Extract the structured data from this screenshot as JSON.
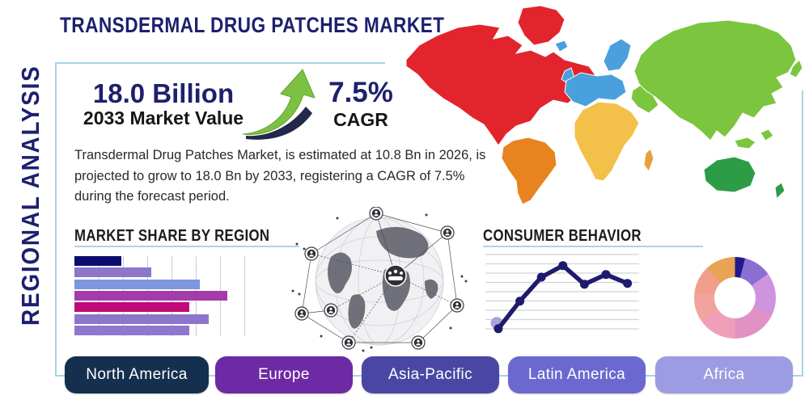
{
  "title": "TRANSDERMAL DRUG PATCHES MARKET",
  "side_label": "REGIONAL ANALYSIS",
  "stats": {
    "market_value": "18.0 Billion",
    "market_value_label": "2033 Market Value",
    "cagr_value": "7.5%",
    "cagr_label": "CAGR",
    "growth_arrow_color": "#7dc142"
  },
  "description": "Transdermal Drug Patches Market, is estimated at 10.8 Bn in 2026, is projected to grow to 18.0 Bn by 2033, registering a CAGR of 7.5% during the forecast period.",
  "accent": {
    "navy": "#1e1f6d",
    "panel_border": "#a9d4e9",
    "underline": "#a9d4e9"
  },
  "sections": {
    "bar_chart_title": "MARKET SHARE BY REGION",
    "line_chart_title": "CONSUMER BEHAVIOR"
  },
  "regions": [
    {
      "label": "North America",
      "color": "#15304f"
    },
    {
      "label": "Europe",
      "color": "#6e2aa4"
    },
    {
      "label": "Asia-Pacific",
      "color": "#4a47a4"
    },
    {
      "label": "Latin America",
      "color": "#6b69d0"
    },
    {
      "label": "Africa",
      "color": "#9d9ce2"
    }
  ],
  "map": {
    "colors": {
      "north_america": "#e2242c",
      "greenland": "#e2242c",
      "south_america": "#e8831f",
      "europe": "#4aa0dc",
      "iceland": "#4aa0dc",
      "uk": "#4aa0dc",
      "africa": "#f3c04a",
      "madagascar": "#e8a03c",
      "asia": "#7cc53f",
      "middle_east": "#7cc53f",
      "japan": "#7cc53f",
      "southeast_asia": "#7cc53f",
      "australia": "#2d9c47",
      "new_zealand": "#2d9c47"
    }
  },
  "chart_data": [
    {
      "type": "bar",
      "title": "MARKET SHARE BY REGION",
      "orientation": "horizontal",
      "categories": [
        "",
        "",
        "",
        "",
        "",
        "",
        ""
      ],
      "values": [
        27,
        44,
        72,
        88,
        66,
        77,
        66
      ],
      "value_unit": "percent-of-axis",
      "xlim": [
        0,
        100
      ],
      "grid": true,
      "bar_colors": [
        "#0d0d70",
        "#8d77cc",
        "#7d96dd",
        "#a43bab",
        "#bf0a78",
        "#8b76cb",
        "#8d78cd"
      ]
    },
    {
      "type": "line",
      "title": "CONSUMER BEHAVIOR",
      "x": [
        1,
        2,
        3,
        4,
        5,
        6,
        7
      ],
      "values": [
        0.2,
        3.3,
        6.0,
        7.3,
        5.2,
        6.3,
        5.3
      ],
      "ylim": [
        0,
        8
      ],
      "grid": true,
      "line_color": "#1e1b6e",
      "marker": "circle",
      "first_point_halo_color": "#9e93d8"
    },
    {
      "type": "pie",
      "title": "regional-share-donut",
      "donut": true,
      "values": [
        4,
        11,
        17,
        18,
        15,
        12,
        11,
        12
      ],
      "colors": [
        "#201b8c",
        "#8a6fd2",
        "#ce93de",
        "#e291c5",
        "#efa0b8",
        "#f2a39e",
        "#f0a08a",
        "#e9a355"
      ]
    }
  ]
}
